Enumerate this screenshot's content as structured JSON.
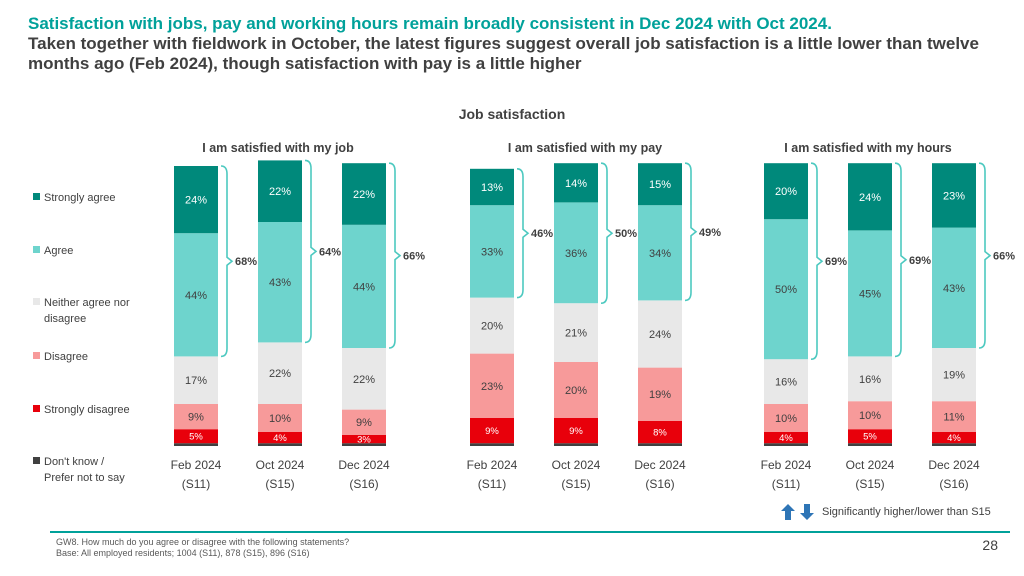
{
  "header": {
    "title_line1": "Satisfaction with jobs, pay and working hours remain broadly consistent in Dec 2024 with Oct 2024.",
    "title_line2": "Taken together with fieldwork in October, the latest figures suggest overall job satisfaction is a little lower than twelve months ago (Feb 2024), though satisfaction with pay is a little higher"
  },
  "colors": {
    "strongly_agree": "#00897b",
    "agree": "#6ed4cd",
    "neither": "#e8e8e8",
    "disagree": "#f79a9a",
    "strongly_disagree": "#e8000b",
    "dont_know": "#404040",
    "bracket": "#4dc9c0",
    "accent": "#00a19a",
    "arrow": "#2e75b6"
  },
  "legend": {
    "items": [
      {
        "key": "strongly_agree",
        "label": "Strongly agree"
      },
      {
        "key": "agree",
        "label": "Agree"
      },
      {
        "key": "neither",
        "label": "Neither agree nor disagree"
      },
      {
        "key": "disagree",
        "label": "Disagree"
      },
      {
        "key": "strongly_disagree",
        "label": "Strongly disagree"
      },
      {
        "key": "dont_know",
        "label": "Don't know / Prefer not to say"
      }
    ]
  },
  "chart_data": {
    "type": "bar",
    "stacked": true,
    "title": "Job satisfaction",
    "y_unit": "%",
    "ylim": [
      0,
      100
    ],
    "categories": [
      "Feb 2024 (S11)",
      "Oct 2024 (S15)",
      "Dec 2024 (S16)"
    ],
    "groups": [
      {
        "title": "I am satisfied with my job",
        "bars": [
          {
            "period": "Feb 2024",
            "wave": "(S11)",
            "dont_know": 1,
            "strongly_disagree": 5,
            "disagree": 9,
            "neither": 17,
            "agree": 44,
            "strongly_agree": 24,
            "labels": {
              "strongly_disagree": "5%",
              "disagree": "9%",
              "neither": "17%",
              "agree": "44%",
              "strongly_agree": "24%"
            },
            "net": "68%"
          },
          {
            "period": "Oct 2024",
            "wave": "(S15)",
            "dont_know": 1,
            "strongly_disagree": 4,
            "disagree": 10,
            "neither": 22,
            "agree": 43,
            "strongly_agree": 22,
            "labels": {
              "strongly_disagree": "4%",
              "disagree": "10%",
              "neither": "22%",
              "agree": "43%",
              "strongly_agree": "22%"
            },
            "net": "64%"
          },
          {
            "period": "Dec 2024",
            "wave": "(S16)",
            "dont_know": 1,
            "strongly_disagree": 3,
            "disagree": 9,
            "neither": 22,
            "agree": 44,
            "strongly_agree": 22,
            "labels": {
              "strongly_disagree": "3%",
              "disagree": "9%",
              "neither": "22%",
              "agree": "44%",
              "strongly_agree": "22%"
            },
            "net": "66%"
          }
        ]
      },
      {
        "title": "I am satisfied with my pay",
        "bars": [
          {
            "period": "Feb 2024",
            "wave": "(S11)",
            "dont_know": 1,
            "strongly_disagree": 9,
            "disagree": 23,
            "neither": 20,
            "agree": 33,
            "strongly_agree": 13,
            "labels": {
              "strongly_disagree": "9%",
              "disagree": "23%",
              "neither": "20%",
              "agree": "33%",
              "strongly_agree": "13%"
            },
            "net": "46%"
          },
          {
            "period": "Oct 2024",
            "wave": "(S15)",
            "dont_know": 1,
            "strongly_disagree": 9,
            "disagree": 20,
            "neither": 21,
            "agree": 36,
            "strongly_agree": 14,
            "labels": {
              "strongly_disagree": "9%",
              "disagree": "20%",
              "neither": "21%",
              "agree": "36%",
              "strongly_agree": "14%"
            },
            "net": "50%"
          },
          {
            "period": "Dec 2024",
            "wave": "(S16)",
            "dont_know": 1,
            "strongly_disagree": 8,
            "disagree": 19,
            "neither": 24,
            "agree": 34,
            "strongly_agree": 15,
            "labels": {
              "strongly_disagree": "8%",
              "disagree": "19%",
              "neither": "24%",
              "agree": "34%",
              "strongly_agree": "15%"
            },
            "net": "49%"
          }
        ]
      },
      {
        "title": "I am satisfied with my hours",
        "bars": [
          {
            "period": "Feb 2024",
            "wave": "(S11)",
            "dont_know": 1,
            "strongly_disagree": 4,
            "disagree": 10,
            "neither": 16,
            "agree": 50,
            "strongly_agree": 20,
            "labels": {
              "strongly_disagree": "4%",
              "disagree": "10%",
              "neither": "16%",
              "agree": "50%",
              "strongly_agree": "20%"
            },
            "net": "69%"
          },
          {
            "period": "Oct 2024",
            "wave": "(S15)",
            "dont_know": 1,
            "strongly_disagree": 5,
            "disagree": 10,
            "neither": 16,
            "agree": 45,
            "strongly_agree": 24,
            "labels": {
              "strongly_disagree": "5%",
              "disagree": "10%",
              "neither": "16%",
              "agree": "45%",
              "strongly_agree": "24%"
            },
            "net": "69%"
          },
          {
            "period": "Dec 2024",
            "wave": "(S16)",
            "dont_know": 1,
            "strongly_disagree": 4,
            "disagree": 11,
            "neither": 19,
            "agree": 43,
            "strongly_agree": 23,
            "labels": {
              "strongly_disagree": "4%",
              "disagree": "11%",
              "neither": "19%",
              "agree": "43%",
              "strongly_agree": "23%"
            },
            "net": "66%"
          }
        ]
      }
    ]
  },
  "significance_legend": "Significantly higher/lower than S15",
  "footnote": {
    "question": "GW8. How much do you agree or disagree with the following statements?",
    "base": "Base: All employed residents; 1004 (S11), 878 (S15), 896 (S16)"
  },
  "page_number": "28"
}
